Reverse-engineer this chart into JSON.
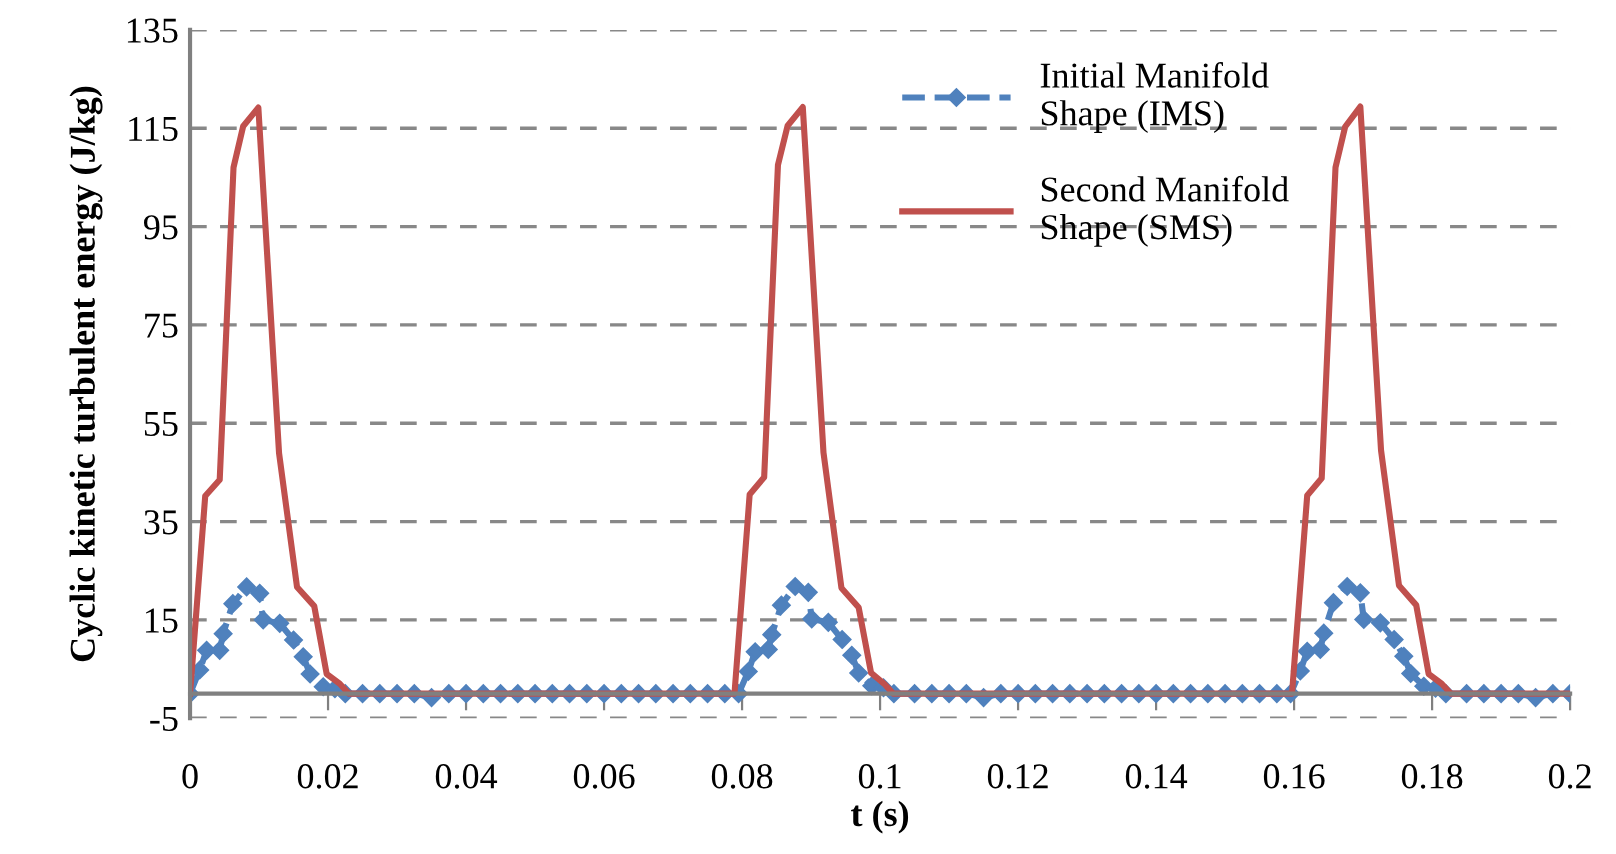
{
  "chart_data": {
    "type": "line",
    "xlabel": "t (s)",
    "ylabel": "Cyclic kinetic turbulent energy (J/kg)",
    "xlim": [
      0,
      0.2
    ],
    "xticks": [
      0,
      0.02,
      0.04,
      0.06,
      0.08,
      0.1,
      0.12,
      0.14,
      0.16,
      0.18,
      0.2
    ],
    "ylim": [
      -5,
      135
    ],
    "yticks": [
      -5,
      15,
      35,
      55,
      75,
      95,
      115,
      135
    ],
    "grid": "y",
    "legend": "top right",
    "series": [
      {
        "name": "Initial Manifold\nShape (IMS)",
        "color": "#4f81bd",
        "marker": "diamond",
        "line_style": "dashed",
        "x": [
          0,
          0.0014,
          0.0024,
          0.0043,
          0.0048,
          0.0062,
          0.0082,
          0.0101,
          0.0106,
          0.013,
          0.015,
          0.0164,
          0.0174,
          0.0193,
          0.021,
          0.0225,
          0.025,
          0.0275,
          0.03,
          0.0325,
          0.035,
          0.0375,
          0.04,
          0.0425,
          0.045,
          0.0475,
          0.05,
          0.0525,
          0.055,
          0.0575,
          0.06,
          0.0625,
          0.065,
          0.0675,
          0.07,
          0.0725,
          0.075,
          0.0775,
          0.0795,
          0.0809,
          0.0819,
          0.0838,
          0.0843,
          0.0857,
          0.0877,
          0.0896,
          0.0901,
          0.0925,
          0.0945,
          0.0959,
          0.0969,
          0.0988,
          0.1005,
          0.102,
          0.105,
          0.1075,
          0.11,
          0.1125,
          0.115,
          0.1175,
          0.12,
          0.1225,
          0.125,
          0.1275,
          0.13,
          0.1325,
          0.135,
          0.1375,
          0.14,
          0.1425,
          0.145,
          0.1475,
          0.15,
          0.1525,
          0.155,
          0.1575,
          0.1595,
          0.1609,
          0.1619,
          0.1638,
          0.1643,
          0.1657,
          0.1677,
          0.1696,
          0.1701,
          0.1725,
          0.1745,
          0.1759,
          0.1769,
          0.1788,
          0.1805,
          0.182,
          0.185,
          0.1875,
          0.19,
          0.1925,
          0.195,
          0.1975,
          0.2
        ],
        "values": [
          0,
          4.8,
          8.8,
          8.8,
          12.2,
          18.3,
          21.7,
          20.4,
          15,
          14.3,
          10.9,
          7.5,
          4,
          1.4,
          1,
          0,
          0,
          0,
          0,
          0,
          -0.8,
          0,
          0,
          0,
          0,
          0,
          0,
          0,
          0,
          0,
          0,
          0,
          0,
          0,
          0,
          0,
          0,
          0,
          0,
          4.5,
          8.5,
          9,
          12,
          18,
          21.8,
          20.6,
          15.2,
          14.5,
          11,
          7.8,
          4.2,
          1.6,
          1.2,
          0,
          0,
          0,
          0,
          0,
          -0.8,
          0,
          0,
          0,
          0,
          0,
          0,
          0,
          0,
          0,
          0,
          0,
          0,
          0,
          0,
          0,
          0,
          0,
          0,
          4.6,
          8.6,
          9,
          12.3,
          18.5,
          21.8,
          20.5,
          15.1,
          14.4,
          11,
          7.6,
          4.1,
          1.5,
          1.1,
          0,
          0,
          0,
          0,
          0,
          -0.8,
          0,
          0
        ]
      },
      {
        "name": "Second Manifold\nShape (SMS)",
        "color": "#c0504d",
        "marker": "none",
        "line_style": "solid",
        "x": [
          0,
          0.0022,
          0.0043,
          0.0063,
          0.0077,
          0.0099,
          0.0129,
          0.0155,
          0.018,
          0.0198,
          0.0217,
          0.023,
          0.0789,
          0.0811,
          0.0832,
          0.0852,
          0.0866,
          0.0888,
          0.0918,
          0.0944,
          0.0969,
          0.0987,
          0.1006,
          0.1019,
          0.1597,
          0.1619,
          0.164,
          0.166,
          0.1674,
          0.1696,
          0.1726,
          0.1752,
          0.1777,
          0.1795,
          0.1814,
          0.1827,
          0.2
        ],
        "values": [
          0,
          40.2,
          43.5,
          107,
          115.4,
          119.2,
          48.9,
          21.7,
          17.8,
          4,
          2,
          0,
          0,
          40.5,
          44,
          107.5,
          115.5,
          119.3,
          49,
          21.5,
          17.5,
          4.2,
          2,
          0,
          0,
          40.3,
          43.8,
          107,
          115.3,
          119.4,
          49.5,
          22,
          18,
          4,
          2,
          0,
          0
        ]
      }
    ]
  }
}
